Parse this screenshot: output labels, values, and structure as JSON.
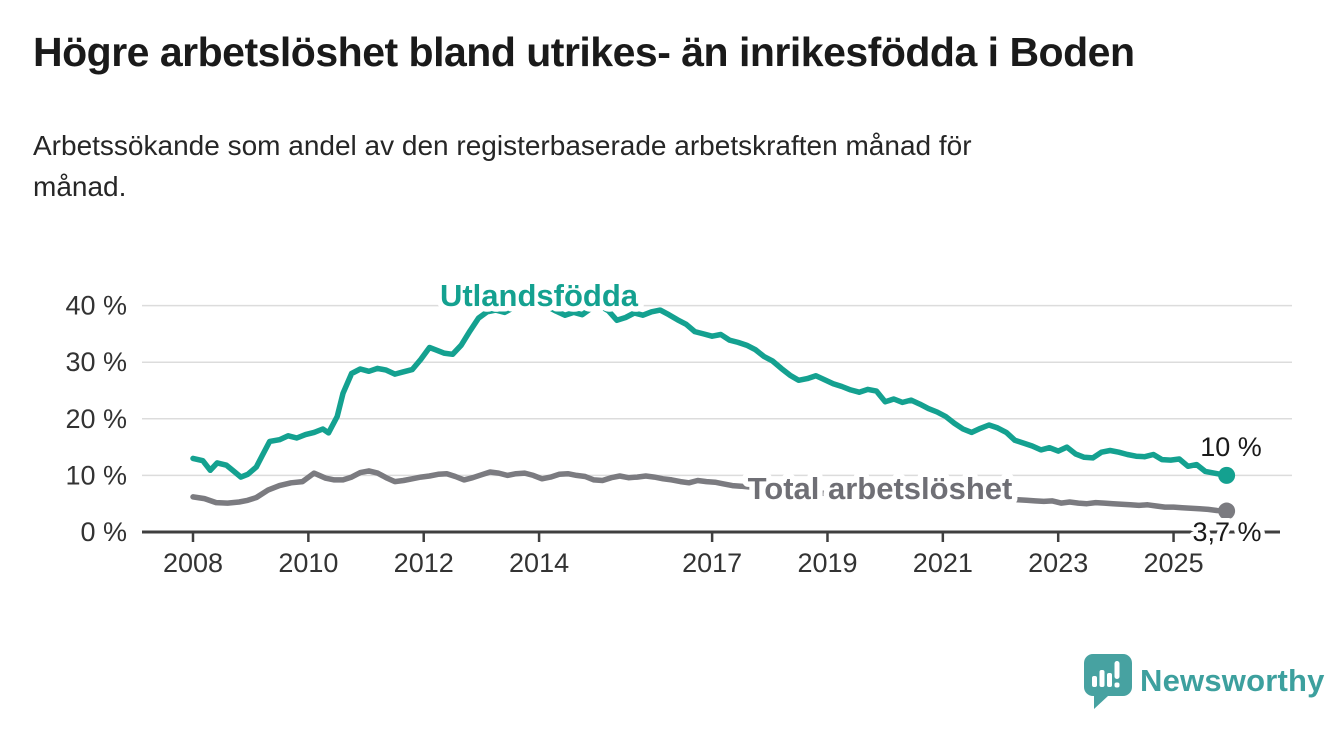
{
  "header": {
    "title": "Högre arbetslöshet bland utrikes- än inrikesfödda i Boden",
    "subtitle_lines": [
      "Arbetssökande som andel av den registerbaserade arbetskraften månad för",
      "månad."
    ]
  },
  "chart_data": {
    "type": "line",
    "title": "Högre arbetslöshet bland utrikes- än inrikesfödda i Boden",
    "subtitle": "Arbetssökande som andel av den registerbaserade arbetskraften månad för månad.",
    "xlabel": "",
    "ylabel": "",
    "grid": "horizontal",
    "legend_position": "inline-labels",
    "x_axis": {
      "ticks": [
        2008,
        2010,
        2012,
        2014,
        2017,
        2019,
        2021,
        2023,
        2025
      ],
      "tick_labels": [
        "2008",
        "2010",
        "2012",
        "2014",
        "2017",
        "2019",
        "2021",
        "2023",
        "2025"
      ],
      "range": [
        2007.1,
        2026.85
      ]
    },
    "y_axis": {
      "ticks": [
        0,
        10,
        20,
        30,
        40
      ],
      "tick_labels": [
        "0 %",
        "10 %",
        "20 %",
        "30 %",
        "40 %"
      ],
      "range": [
        0,
        44
      ]
    },
    "series": [
      {
        "name": "Utlandsfödda",
        "color": "#14a190",
        "end_label": "10 %",
        "end_value": 10.0,
        "points": [
          [
            2008.0,
            13.0
          ],
          [
            2008.17,
            12.6
          ],
          [
            2008.3,
            10.9
          ],
          [
            2008.42,
            12.2
          ],
          [
            2008.58,
            11.8
          ],
          [
            2008.7,
            10.8
          ],
          [
            2008.83,
            9.7
          ],
          [
            2008.95,
            10.2
          ],
          [
            2009.1,
            11.5
          ],
          [
            2009.2,
            13.5
          ],
          [
            2009.33,
            16.0
          ],
          [
            2009.5,
            16.3
          ],
          [
            2009.65,
            17.0
          ],
          [
            2009.8,
            16.6
          ],
          [
            2009.95,
            17.2
          ],
          [
            2010.1,
            17.6
          ],
          [
            2010.25,
            18.2
          ],
          [
            2010.35,
            17.5
          ],
          [
            2010.5,
            20.4
          ],
          [
            2010.6,
            24.5
          ],
          [
            2010.75,
            28.0
          ],
          [
            2010.9,
            28.8
          ],
          [
            2011.05,
            28.4
          ],
          [
            2011.2,
            28.9
          ],
          [
            2011.35,
            28.6
          ],
          [
            2011.5,
            27.9
          ],
          [
            2011.65,
            28.3
          ],
          [
            2011.8,
            28.7
          ],
          [
            2011.95,
            30.5
          ],
          [
            2012.1,
            32.6
          ],
          [
            2012.2,
            32.2
          ],
          [
            2012.35,
            31.6
          ],
          [
            2012.5,
            31.4
          ],
          [
            2012.65,
            33.0
          ],
          [
            2012.8,
            35.5
          ],
          [
            2012.95,
            37.8
          ],
          [
            2013.1,
            38.9
          ],
          [
            2013.25,
            39.2
          ],
          [
            2013.4,
            38.8
          ],
          [
            2013.55,
            39.6
          ],
          [
            2013.7,
            40.2
          ],
          [
            2013.85,
            40.5
          ],
          [
            2014.0,
            40.3
          ],
          [
            2014.15,
            39.8
          ],
          [
            2014.3,
            39.0
          ],
          [
            2014.45,
            38.3
          ],
          [
            2014.6,
            38.8
          ],
          [
            2014.75,
            38.4
          ],
          [
            2014.9,
            39.5
          ],
          [
            2015.05,
            40.0
          ],
          [
            2015.2,
            39.1
          ],
          [
            2015.35,
            37.4
          ],
          [
            2015.5,
            37.9
          ],
          [
            2015.65,
            38.7
          ],
          [
            2015.8,
            38.3
          ],
          [
            2015.95,
            38.9
          ],
          [
            2016.1,
            39.2
          ],
          [
            2016.25,
            38.4
          ],
          [
            2016.4,
            37.5
          ],
          [
            2016.55,
            36.7
          ],
          [
            2016.7,
            35.4
          ],
          [
            2016.85,
            35.0
          ],
          [
            2017.0,
            34.6
          ],
          [
            2017.15,
            34.9
          ],
          [
            2017.3,
            33.9
          ],
          [
            2017.45,
            33.5
          ],
          [
            2017.6,
            33.0
          ],
          [
            2017.75,
            32.2
          ],
          [
            2017.9,
            31.0
          ],
          [
            2018.05,
            30.2
          ],
          [
            2018.2,
            28.9
          ],
          [
            2018.35,
            27.7
          ],
          [
            2018.5,
            26.8
          ],
          [
            2018.65,
            27.1
          ],
          [
            2018.8,
            27.6
          ],
          [
            2018.95,
            26.9
          ],
          [
            2019.1,
            26.2
          ],
          [
            2019.25,
            25.7
          ],
          [
            2019.4,
            25.1
          ],
          [
            2019.55,
            24.7
          ],
          [
            2019.7,
            25.2
          ],
          [
            2019.85,
            24.9
          ],
          [
            2020.0,
            23.0
          ],
          [
            2020.15,
            23.5
          ],
          [
            2020.3,
            22.9
          ],
          [
            2020.45,
            23.3
          ],
          [
            2020.6,
            22.6
          ],
          [
            2020.75,
            21.8
          ],
          [
            2020.9,
            21.2
          ],
          [
            2021.05,
            20.4
          ],
          [
            2021.2,
            19.2
          ],
          [
            2021.35,
            18.2
          ],
          [
            2021.5,
            17.6
          ],
          [
            2021.65,
            18.3
          ],
          [
            2021.8,
            18.9
          ],
          [
            2021.95,
            18.4
          ],
          [
            2022.1,
            17.6
          ],
          [
            2022.25,
            16.2
          ],
          [
            2022.4,
            15.7
          ],
          [
            2022.55,
            15.2
          ],
          [
            2022.7,
            14.5
          ],
          [
            2022.85,
            14.9
          ],
          [
            2023.0,
            14.3
          ],
          [
            2023.15,
            15.0
          ],
          [
            2023.3,
            13.8
          ],
          [
            2023.45,
            13.2
          ],
          [
            2023.6,
            13.1
          ],
          [
            2023.75,
            14.1
          ],
          [
            2023.9,
            14.4
          ],
          [
            2024.05,
            14.1
          ],
          [
            2024.2,
            13.7
          ],
          [
            2024.35,
            13.4
          ],
          [
            2024.5,
            13.3
          ],
          [
            2024.65,
            13.7
          ],
          [
            2024.8,
            12.8
          ],
          [
            2024.95,
            12.7
          ],
          [
            2025.1,
            12.9
          ],
          [
            2025.25,
            11.6
          ],
          [
            2025.4,
            11.9
          ],
          [
            2025.55,
            10.7
          ],
          [
            2025.7,
            10.4
          ],
          [
            2025.92,
            10.0
          ]
        ]
      },
      {
        "name": "Total arbetslöshet",
        "color": "#7b7b80",
        "end_label": "3,7 %",
        "end_value": 3.7,
        "points": [
          [
            2008.0,
            6.2
          ],
          [
            2008.2,
            5.9
          ],
          [
            2008.4,
            5.2
          ],
          [
            2008.6,
            5.1
          ],
          [
            2008.8,
            5.3
          ],
          [
            2008.95,
            5.6
          ],
          [
            2009.1,
            6.1
          ],
          [
            2009.3,
            7.4
          ],
          [
            2009.5,
            8.2
          ],
          [
            2009.7,
            8.7
          ],
          [
            2009.9,
            8.9
          ],
          [
            2010.1,
            10.4
          ],
          [
            2010.3,
            9.5
          ],
          [
            2010.45,
            9.2
          ],
          [
            2010.6,
            9.2
          ],
          [
            2010.75,
            9.7
          ],
          [
            2010.9,
            10.5
          ],
          [
            2011.05,
            10.8
          ],
          [
            2011.2,
            10.4
          ],
          [
            2011.35,
            9.6
          ],
          [
            2011.5,
            8.9
          ],
          [
            2011.65,
            9.1
          ],
          [
            2011.8,
            9.4
          ],
          [
            2011.95,
            9.7
          ],
          [
            2012.1,
            9.9
          ],
          [
            2012.25,
            10.2
          ],
          [
            2012.4,
            10.3
          ],
          [
            2012.55,
            9.8
          ],
          [
            2012.7,
            9.2
          ],
          [
            2012.85,
            9.6
          ],
          [
            2013.0,
            10.1
          ],
          [
            2013.15,
            10.6
          ],
          [
            2013.3,
            10.4
          ],
          [
            2013.45,
            10.0
          ],
          [
            2013.6,
            10.3
          ],
          [
            2013.75,
            10.4
          ],
          [
            2013.9,
            10.0
          ],
          [
            2014.05,
            9.4
          ],
          [
            2014.2,
            9.7
          ],
          [
            2014.35,
            10.2
          ],
          [
            2014.5,
            10.3
          ],
          [
            2014.65,
            10.0
          ],
          [
            2014.8,
            9.8
          ],
          [
            2014.95,
            9.2
          ],
          [
            2015.1,
            9.1
          ],
          [
            2015.25,
            9.6
          ],
          [
            2015.4,
            9.9
          ],
          [
            2015.55,
            9.6
          ],
          [
            2015.7,
            9.7
          ],
          [
            2015.85,
            9.9
          ],
          [
            2016.0,
            9.7
          ],
          [
            2016.15,
            9.4
          ],
          [
            2016.3,
            9.2
          ],
          [
            2016.45,
            8.9
          ],
          [
            2016.6,
            8.7
          ],
          [
            2016.75,
            9.1
          ],
          [
            2016.9,
            8.9
          ],
          [
            2017.05,
            8.8
          ],
          [
            2017.2,
            8.5
          ],
          [
            2017.35,
            8.2
          ],
          [
            2017.5,
            8.1
          ],
          [
            2017.8,
            7.8
          ],
          [
            2018.2,
            7.4
          ],
          [
            2018.6,
            7.0
          ],
          [
            2019.0,
            6.8
          ],
          [
            2019.5,
            6.5
          ],
          [
            2020.0,
            6.9
          ],
          [
            2020.5,
            6.7
          ],
          [
            2021.0,
            6.3
          ],
          [
            2021.5,
            6.0
          ],
          [
            2022.0,
            5.8
          ],
          [
            2022.3,
            5.7
          ],
          [
            2022.45,
            5.6
          ],
          [
            2022.6,
            5.5
          ],
          [
            2022.75,
            5.4
          ],
          [
            2022.9,
            5.5
          ],
          [
            2023.05,
            5.1
          ],
          [
            2023.2,
            5.3
          ],
          [
            2023.35,
            5.1
          ],
          [
            2023.5,
            5.0
          ],
          [
            2023.65,
            5.2
          ],
          [
            2023.8,
            5.1
          ],
          [
            2023.95,
            5.0
          ],
          [
            2024.1,
            4.9
          ],
          [
            2024.25,
            4.8
          ],
          [
            2024.4,
            4.7
          ],
          [
            2024.55,
            4.8
          ],
          [
            2024.7,
            4.6
          ],
          [
            2024.85,
            4.4
          ],
          [
            2025.0,
            4.4
          ],
          [
            2025.15,
            4.3
          ],
          [
            2025.3,
            4.2
          ],
          [
            2025.45,
            4.1
          ],
          [
            2025.6,
            4.0
          ],
          [
            2025.75,
            3.8
          ],
          [
            2025.92,
            3.7
          ]
        ]
      }
    ]
  },
  "footer": {
    "brand": "Newsworthy"
  }
}
